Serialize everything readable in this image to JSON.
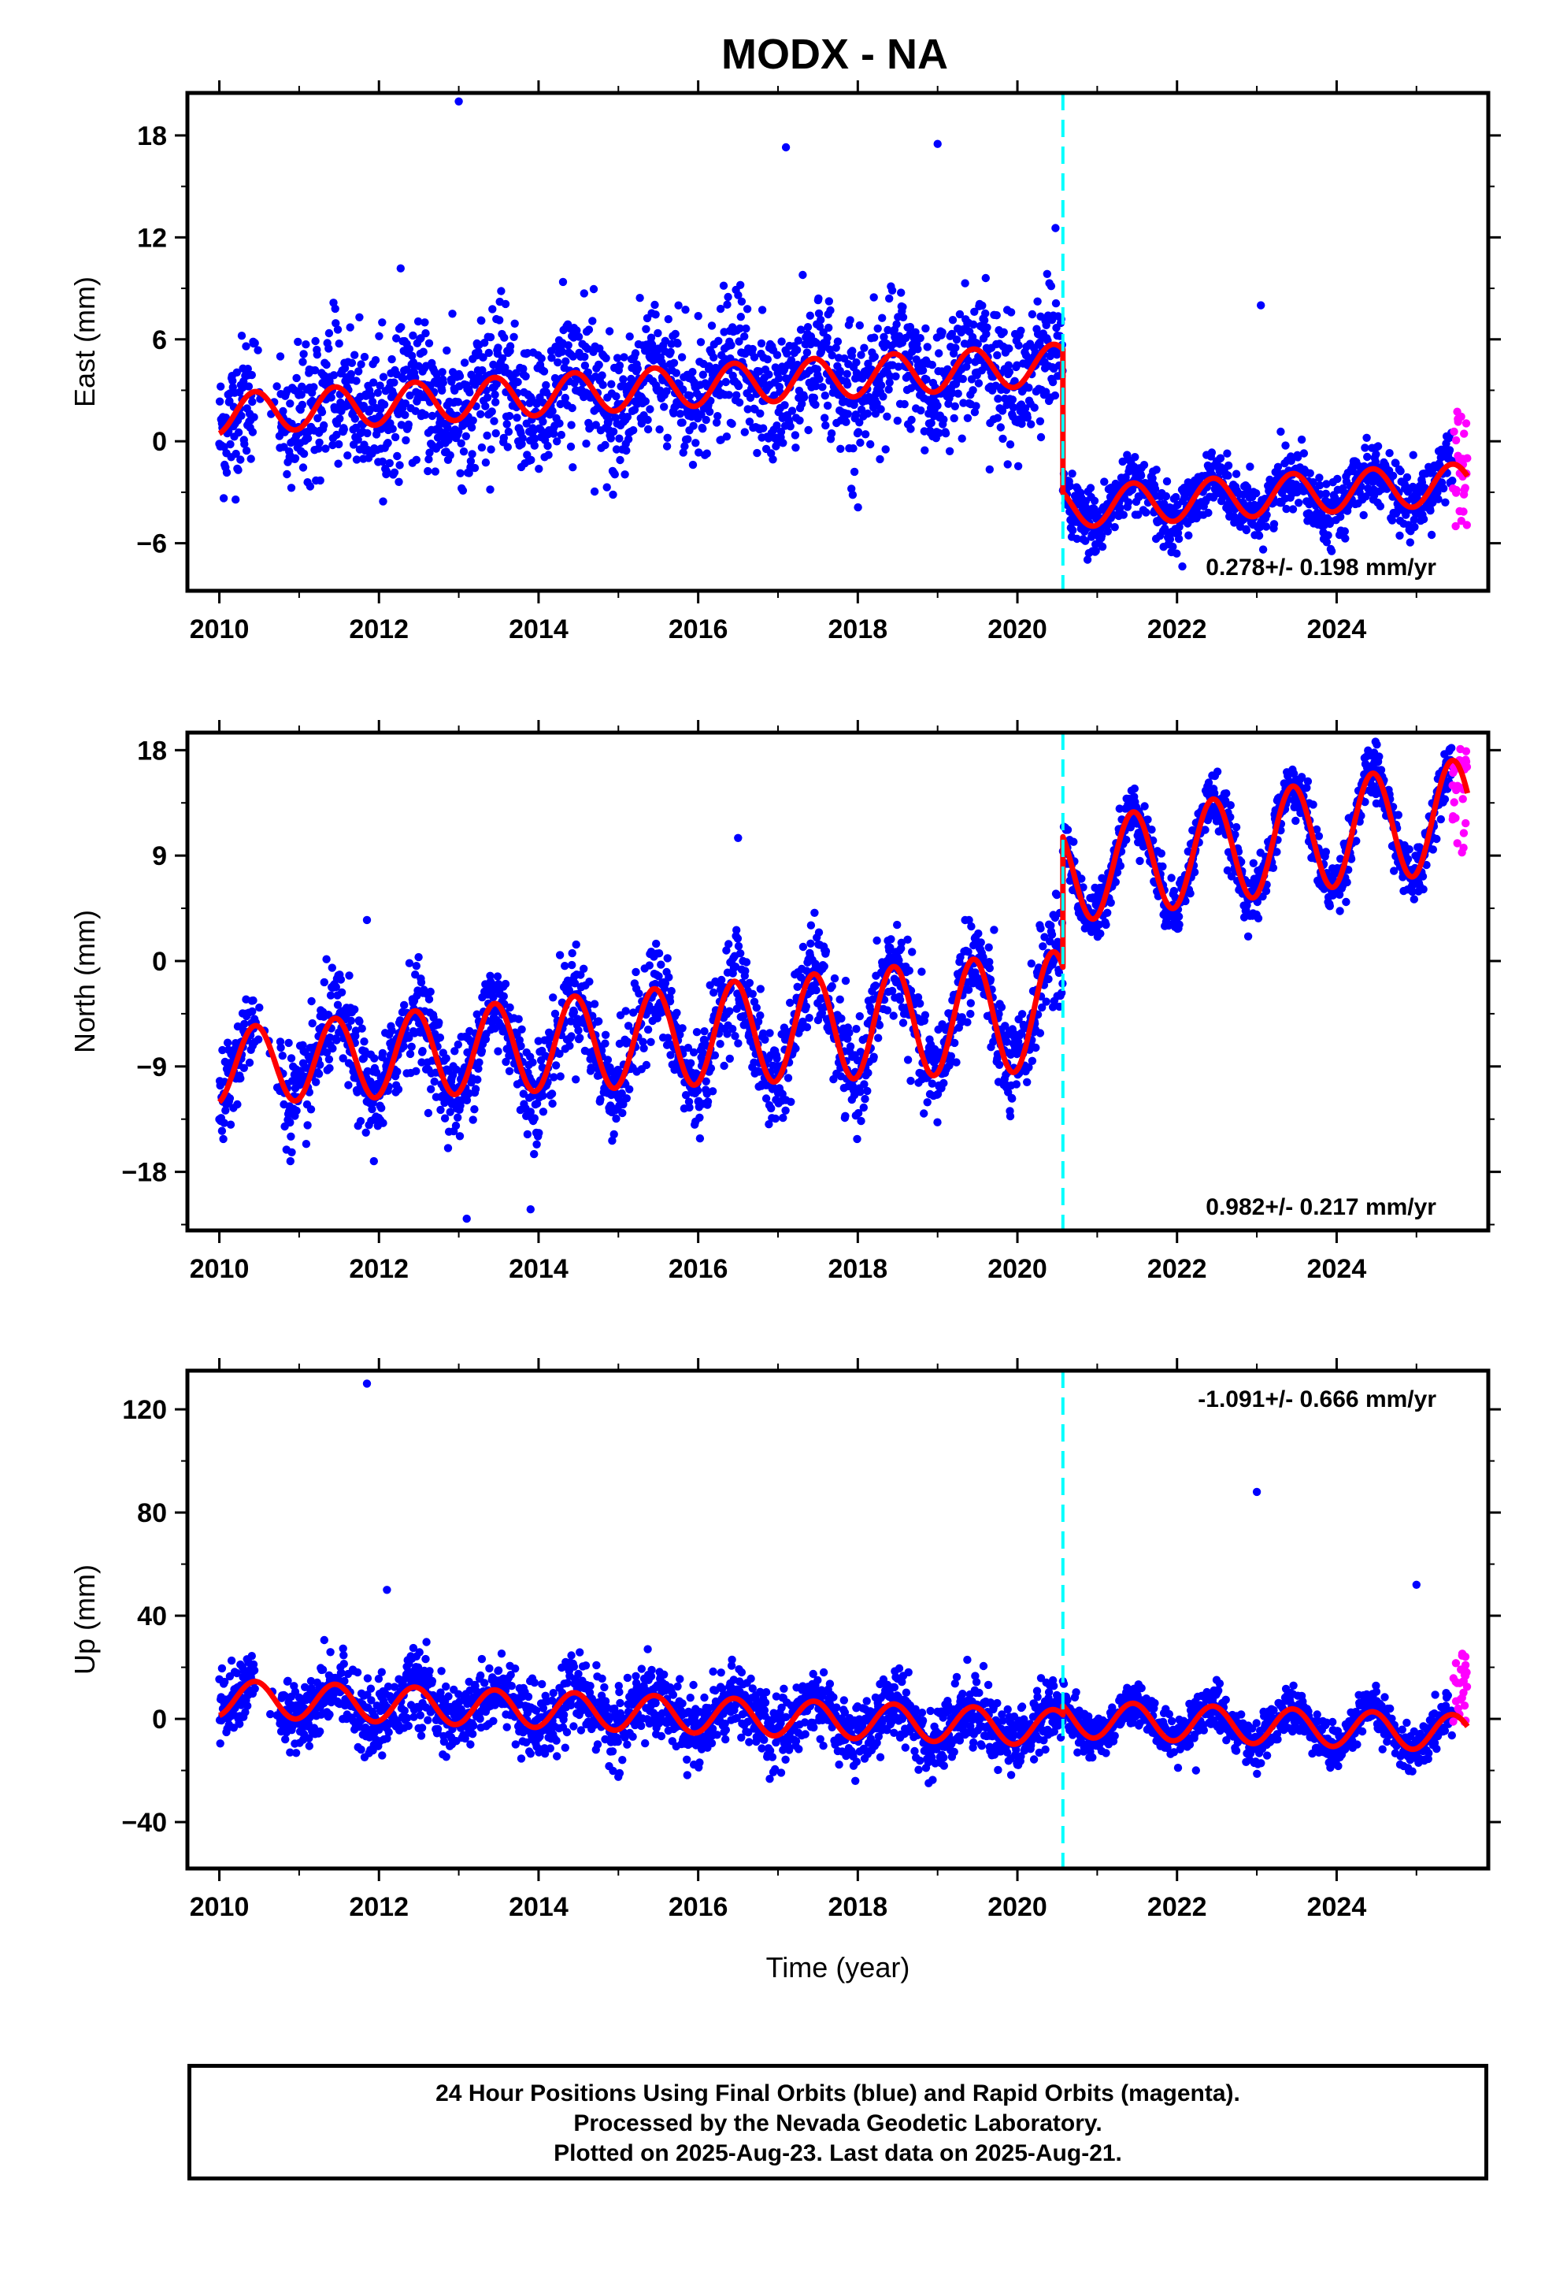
{
  "title": "MODX - NA",
  "footer": {
    "line1": "24 Hour Positions Using Final Orbits (blue) and Rapid Orbits (magenta).",
    "line2": "Processed by the Nevada Geodetic Laboratory.",
    "line3": "Plotted on 2025-Aug-23. Last data on 2025-Aug-21."
  },
  "chart_data": [
    {
      "type": "scatter",
      "ylabel": "East (mm)",
      "xlim": [
        2009.6,
        2025.9
      ],
      "ylim": [
        -8.8,
        20.5
      ],
      "yticks": [
        -6,
        0,
        6,
        12,
        18
      ],
      "xticks": [
        2010,
        2012,
        2014,
        2016,
        2018,
        2020,
        2022,
        2024
      ],
      "offset_epoch": 2020.57,
      "rate_label": "0.278+/- 0.198 mm/yr",
      "rate_position": "bottom-right",
      "colors": {
        "final": "#0000ff",
        "rapid": "#ff00ff",
        "model": "#ff0000",
        "offset": "#00ffff"
      },
      "model": {
        "before_offset": {
          "start": 1.6,
          "rate": 0.278,
          "amp": 1.2
        },
        "after_offset": {
          "start": -3.9,
          "rate": 0.278,
          "amp": 1.2
        }
      },
      "scatter_envelope": {
        "before_offset": {
          "sigma": 2.6,
          "range": [
            -6.2,
            20.0
          ]
        },
        "after_offset": {
          "sigma": 1.2,
          "range": [
            -8.0,
            2.0
          ]
        }
      },
      "outliers": [
        [
          2013.0,
          20.0
        ],
        [
          2023.05,
          8.0
        ],
        [
          2017.1,
          17.3
        ],
        [
          2019.0,
          17.5
        ]
      ],
      "rapid_points": {
        "x_range": [
          2025.45,
          2025.64
        ],
        "y_range": [
          -5.3,
          1.8
        ]
      }
    },
    {
      "type": "scatter",
      "ylabel": "North (mm)",
      "xlim": [
        2009.6,
        2025.9
      ],
      "ylim": [
        -23,
        19.5
      ],
      "yticks": [
        -18,
        -9,
        0,
        9,
        18
      ],
      "xticks": [
        2010,
        2012,
        2014,
        2016,
        2018,
        2020,
        2022,
        2024
      ],
      "offset_epoch": 2020.57,
      "rate_label": "0.982+/- 0.217 mm/yr",
      "rate_position": "bottom-right",
      "colors": {
        "final": "#0000ff",
        "rapid": "#ff00ff",
        "model": "#ff0000",
        "offset": "#00ffff"
      },
      "model": {
        "before_offset": {
          "start": -9.0,
          "rate": 0.45,
          "amp": 3.2,
          "amp_growth": 0.18
        },
        "after_offset": {
          "start": 7.5,
          "rate": 1.0,
          "amp": 3.2,
          "amp_growth": 0.1
        }
      },
      "scatter_envelope": {
        "before_offset": {
          "sigma": 2.8,
          "range": [
            -22.0,
            10.5
          ]
        },
        "after_offset": {
          "sigma": 1.6,
          "range": [
            0.0,
            19.0
          ]
        }
      },
      "outliers": [
        [
          2011.85,
          3.5
        ],
        [
          2013.1,
          -22.0
        ],
        [
          2013.9,
          -21.2
        ],
        [
          2016.5,
          10.5
        ]
      ],
      "rapid_points": {
        "x_range": [
          2025.45,
          2025.64
        ],
        "y_range": [
          9.0,
          18.5
        ]
      }
    },
    {
      "type": "scatter",
      "ylabel": "Up (mm)",
      "xlabel": "Time (year)",
      "xlim": [
        2009.6,
        2025.9
      ],
      "ylim": [
        -58,
        135
      ],
      "yticks": [
        -40,
        0,
        40,
        80,
        120
      ],
      "xticks": [
        2010,
        2012,
        2014,
        2016,
        2018,
        2020,
        2022,
        2024
      ],
      "offset_epoch": 2020.57,
      "rate_label": "-1.091+/- 0.666 mm/yr",
      "rate_position": "top-right",
      "colors": {
        "final": "#0000ff",
        "rapid": "#ff00ff",
        "model": "#ff0000",
        "offset": "#00ffff"
      },
      "model": {
        "before_offset": {
          "start": 8.0,
          "rate": -1.091,
          "amp": 7.0
        },
        "after_offset": {
          "start": 0.0,
          "rate": -1.091,
          "amp": 7.0
        }
      },
      "scatter_envelope": {
        "before_offset": {
          "sigma": 9.0,
          "range": [
            -54.0,
            36.0
          ]
        },
        "after_offset": {
          "sigma": 5.5,
          "range": [
            -30.0,
            25.0
          ]
        }
      },
      "outliers": [
        [
          2011.85,
          130.0
        ],
        [
          2012.1,
          50.0
        ],
        [
          2023.0,
          88.0
        ],
        [
          2025.0,
          52.0
        ]
      ],
      "rapid_points": {
        "x_range": [
          2025.45,
          2025.64
        ],
        "y_range": [
          -4.0,
          28.0
        ]
      }
    }
  ]
}
